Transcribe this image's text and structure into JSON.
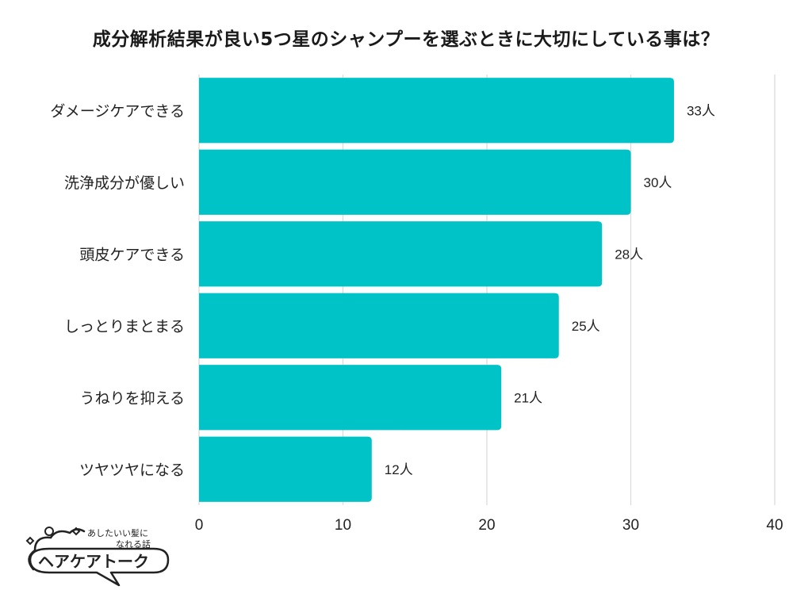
{
  "chart_data": {
    "type": "bar",
    "orientation": "horizontal",
    "title": "成分解析結果が良い5つ星のシャンプーを選ぶときに大切にしている事は？",
    "categories": [
      "ダメージケアできる",
      "洗浄成分が優しい",
      "頭皮ケアできる",
      "しっとりまとまる",
      "うねりを抑える",
      "ツヤツヤになる"
    ],
    "values": [
      33,
      30,
      28,
      25,
      21,
      12
    ],
    "value_labels": [
      "33人",
      "30人",
      "28人",
      "25人",
      "21人",
      "12人"
    ],
    "xlim": [
      0,
      40
    ],
    "xticks": [
      "0",
      "10",
      "20",
      "30",
      "40"
    ],
    "grid": true,
    "bar_color": "#00c3c8"
  },
  "logo": {
    "tagline_1": "あしたいい髪に",
    "tagline_2": "なれる話",
    "name": "ヘアケアトーク"
  }
}
